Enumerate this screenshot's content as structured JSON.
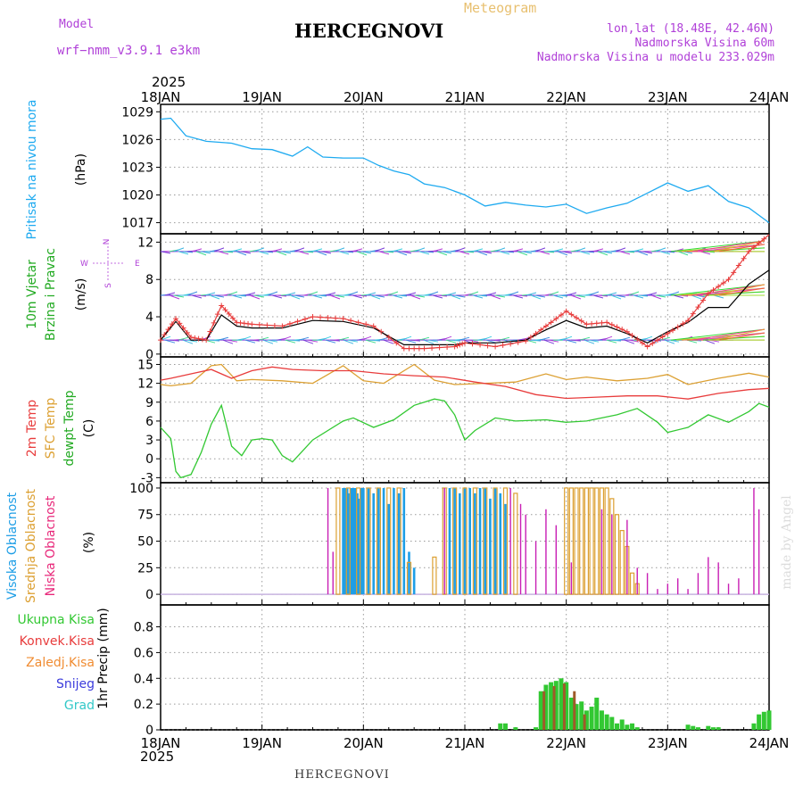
{
  "header": {
    "model_label": "Model",
    "model_name": "wrf−nmm_v3.9.1 e3km",
    "station": "HERCEGNOVI",
    "meteogram": "Meteogram",
    "coords": "lon,lat (18.48E, 42.46N)",
    "elevation": "Nadmorska Visina 60m",
    "model_elevation": "Nadmorska Visina u modelu 233.029m",
    "year_top": "2025",
    "year_bottom": "2025",
    "footer_station": "HERCEGNOVI",
    "watermark": "made by Angel"
  },
  "colors": {
    "pressure": "#1eaaf0",
    "wind_speed": "#000000",
    "wind_gust": "#e83c3c",
    "temp2m": "#e83c3c",
    "sfc_temp": "#dca032",
    "dewpoint": "#32c832",
    "cloud_high": "#1e9ee6",
    "cloud_mid": "#dca032",
    "cloud_low": "#c81eb4",
    "precip_total": "#32c832",
    "precip_conv": "#e83c3c",
    "precip_frozen": "#f08c32",
    "precip_snow": "#3c3cdc",
    "precip_hail": "#32c8c8"
  },
  "chart_data": [
    {
      "type": "line",
      "id": "pressure",
      "ylabel_left": "Pritisak na nivou mora",
      "unit": "(hPa)",
      "x_days": [
        "18JAN",
        "19JAN",
        "20JAN",
        "21JAN",
        "22JAN",
        "23JAN",
        "24JAN"
      ],
      "ylim": [
        1015.8,
        1029.8
      ],
      "yticks": [
        1017,
        1020,
        1023,
        1026,
        1029
      ],
      "series": [
        {
          "name": "Pressure",
          "x": [
            0,
            0.1,
            0.25,
            0.45,
            0.7,
            0.9,
            1.1,
            1.3,
            1.45,
            1.6,
            1.8,
            2.0,
            2.15,
            2.3,
            2.45,
            2.6,
            2.8,
            3.0,
            3.2,
            3.4,
            3.6,
            3.8,
            4.0,
            4.2,
            4.4,
            4.6,
            4.8,
            5.0,
            5.2,
            5.4,
            5.6,
            5.8,
            6.0
          ],
          "y": [
            1028.2,
            1028.3,
            1026.4,
            1025.8,
            1025.6,
            1025.0,
            1024.9,
            1024.2,
            1025.2,
            1024.1,
            1024.0,
            1024.0,
            1023.2,
            1022.6,
            1022.2,
            1021.2,
            1020.8,
            1020.0,
            1018.8,
            1019.2,
            1018.9,
            1018.7,
            1019.0,
            1018.0,
            1018.6,
            1019.1,
            1020.2,
            1021.3,
            1020.4,
            1021.0,
            1019.3,
            1018.6,
            1017.0
          ]
        }
      ]
    },
    {
      "type": "line",
      "id": "wind",
      "ylabel_left": "10m Vjetar",
      "ylabel_left2": "Brzina i Pravac",
      "unit": "(m/s)",
      "compass": {
        "n": "N",
        "w": "W",
        "e": "E",
        "s": "S"
      },
      "ylim": [
        -0.3,
        12.9
      ],
      "yticks": [
        0,
        4,
        8,
        12
      ],
      "barb_rows": [
        1.5,
        6.3,
        11.0
      ],
      "series": [
        {
          "name": "Wind speed",
          "x": [
            0,
            0.15,
            0.3,
            0.45,
            0.6,
            0.75,
            0.9,
            1.2,
            1.5,
            1.8,
            2.1,
            2.4,
            2.6,
            2.9,
            3.0,
            3.3,
            3.6,
            3.8,
            4.0,
            4.2,
            4.4,
            4.6,
            4.8,
            5.0,
            5.2,
            5.4,
            5.6,
            5.8,
            6.0
          ],
          "y": [
            1.5,
            3.5,
            1.5,
            1.5,
            4.2,
            3.0,
            2.8,
            2.8,
            3.6,
            3.5,
            2.8,
            1.0,
            1.0,
            1.0,
            1.2,
            1.2,
            1.5,
            2.6,
            3.6,
            2.8,
            3.0,
            2.2,
            1.2,
            2.4,
            3.4,
            5.0,
            5.0,
            7.5,
            9.0
          ]
        },
        {
          "name": "Wind gust",
          "x": [
            0,
            0.15,
            0.3,
            0.45,
            0.6,
            0.75,
            0.9,
            1.2,
            1.5,
            1.8,
            2.1,
            2.4,
            2.6,
            2.9,
            3.0,
            3.3,
            3.6,
            3.8,
            4.0,
            4.2,
            4.4,
            4.6,
            4.8,
            5.0,
            5.2,
            5.4,
            5.6,
            5.8,
            6.0
          ],
          "y": [
            1.5,
            3.8,
            1.8,
            1.5,
            5.2,
            3.4,
            3.2,
            3.0,
            4.0,
            3.8,
            3.0,
            0.6,
            0.6,
            0.8,
            1.2,
            0.8,
            1.4,
            3.0,
            4.6,
            3.2,
            3.4,
            2.4,
            0.8,
            2.2,
            3.6,
            6.5,
            8.0,
            11.0,
            12.8
          ]
        }
      ]
    },
    {
      "type": "line",
      "id": "temperature",
      "ylabel_left": "2m Temp",
      "ylabel_left2": "SFC Temp",
      "ylabel_left3": "dewpt Temp",
      "unit": "(C)",
      "ylim": [
        -3.8,
        16.2
      ],
      "yticks": [
        -3,
        0,
        3,
        6,
        9,
        12,
        15
      ],
      "series": [
        {
          "name": "2m Temp",
          "x": [
            0,
            0.1,
            0.3,
            0.5,
            0.7,
            0.9,
            1.1,
            1.3,
            1.6,
            1.9,
            2.2,
            2.5,
            2.8,
            3.1,
            3.4,
            3.7,
            4.0,
            4.3,
            4.6,
            4.9,
            5.2,
            5.5,
            5.8,
            6.0
          ],
          "y": [
            12.5,
            12.8,
            13.5,
            14.2,
            12.8,
            14.0,
            14.6,
            14.2,
            14.0,
            14.0,
            13.5,
            13.2,
            13.0,
            12.2,
            11.5,
            10.2,
            9.6,
            9.8,
            10.0,
            10.0,
            9.5,
            10.4,
            11.0,
            11.2
          ]
        },
        {
          "name": "SFC Temp",
          "x": [
            0,
            0.1,
            0.3,
            0.5,
            0.6,
            0.75,
            0.9,
            1.2,
            1.5,
            1.8,
            2.0,
            2.2,
            2.5,
            2.7,
            2.9,
            3.2,
            3.5,
            3.8,
            4.0,
            4.2,
            4.5,
            4.8,
            5.0,
            5.2,
            5.5,
            5.8,
            6.0
          ],
          "y": [
            11.8,
            11.6,
            12.0,
            14.8,
            15.0,
            12.4,
            12.6,
            12.4,
            12.0,
            14.8,
            12.4,
            12.0,
            15.0,
            12.5,
            11.8,
            12.0,
            12.2,
            13.5,
            12.6,
            13.0,
            12.4,
            12.8,
            13.4,
            11.8,
            12.8,
            13.6,
            13.0
          ]
        },
        {
          "name": "dewpt Temp",
          "x": [
            0,
            0.1,
            0.15,
            0.2,
            0.3,
            0.4,
            0.5,
            0.6,
            0.7,
            0.8,
            0.9,
            1.0,
            1.1,
            1.2,
            1.3,
            1.5,
            1.8,
            1.9,
            2.1,
            2.3,
            2.5,
            2.7,
            2.8,
            2.9,
            3.0,
            3.1,
            3.3,
            3.5,
            3.8,
            4.0,
            4.2,
            4.5,
            4.7,
            4.9,
            5.0,
            5.2,
            5.4,
            5.6,
            5.8,
            5.9,
            6.0
          ],
          "y": [
            5.0,
            3.2,
            -2.0,
            -3.0,
            -2.5,
            1.0,
            5.5,
            8.5,
            2.0,
            0.5,
            3.0,
            3.2,
            3.0,
            0.5,
            -0.5,
            3.0,
            6.0,
            6.5,
            5.0,
            6.2,
            8.5,
            9.5,
            9.2,
            7.0,
            3.0,
            4.5,
            6.5,
            6.0,
            6.2,
            5.8,
            6.0,
            7.0,
            8.0,
            5.8,
            4.2,
            5.0,
            7.0,
            5.8,
            7.5,
            8.8,
            8.2
          ]
        }
      ]
    },
    {
      "type": "bar",
      "id": "clouds",
      "ylabel_left": "Visoka Oblacnost",
      "ylabel_left2": "Srednja Oblacnost",
      "ylabel_left3": "Niska Oblacnost",
      "unit": "(%)",
      "ylim": [
        -10,
        105
      ],
      "yticks": [
        0,
        25,
        50,
        75,
        100
      ],
      "series": [
        {
          "name": "Visoka Oblacnost",
          "x": [
            1.8,
            1.82,
            1.84,
            1.86,
            1.88,
            1.9,
            1.92,
            1.94,
            1.96,
            1.98,
            2.0,
            2.05,
            2.1,
            2.15,
            2.2,
            2.25,
            2.3,
            2.35,
            2.4,
            2.45,
            2.5,
            2.85,
            2.9,
            2.95,
            3.0,
            3.05,
            3.1,
            3.15,
            3.2,
            3.25,
            3.3,
            3.35,
            3.4
          ],
          "y": [
            100,
            100,
            100,
            95,
            100,
            100,
            100,
            95,
            90,
            100,
            100,
            100,
            95,
            100,
            100,
            85,
            100,
            95,
            100,
            40,
            25,
            100,
            100,
            95,
            100,
            100,
            95,
            100,
            100,
            90,
            100,
            95,
            85
          ]
        },
        {
          "name": "Srednja Oblacnost",
          "x": [
            1.75,
            1.85,
            1.95,
            2.05,
            2.15,
            2.25,
            2.35,
            2.45,
            2.7,
            2.8,
            2.9,
            3.0,
            3.1,
            3.2,
            3.3,
            3.4,
            3.5,
            4.0,
            4.05,
            4.1,
            4.15,
            4.2,
            4.25,
            4.3,
            4.35,
            4.4,
            4.45,
            4.5,
            4.55,
            4.6,
            4.65,
            4.7
          ],
          "y": [
            100,
            100,
            100,
            100,
            100,
            100,
            100,
            30,
            35,
            100,
            100,
            100,
            100,
            100,
            100,
            100,
            95,
            100,
            100,
            100,
            100,
            100,
            100,
            100,
            100,
            100,
            90,
            75,
            60,
            45,
            20,
            10
          ]
        },
        {
          "name": "Niska Oblacnost",
          "x": [
            1.65,
            1.7,
            2.8,
            3.45,
            3.55,
            3.6,
            3.7,
            3.8,
            3.9,
            4.05,
            4.35,
            4.45,
            4.6,
            4.7,
            4.8,
            4.9,
            5.0,
            5.1,
            5.2,
            5.3,
            5.4,
            5.5,
            5.6,
            5.7,
            5.85,
            5.9
          ],
          "y": [
            100,
            40,
            100,
            100,
            85,
            75,
            50,
            80,
            65,
            30,
            80,
            75,
            70,
            25,
            20,
            5,
            10,
            15,
            5,
            20,
            35,
            30,
            10,
            15,
            100,
            80
          ]
        }
      ]
    },
    {
      "type": "bar",
      "id": "precipitation",
      "ylabel_left": "1hr Precip (mm)",
      "legend": [
        "Ukupna Kisa",
        "Konvek.Kisa",
        "Zaledj.Kisa",
        "Snijeg",
        "Grad"
      ],
      "ylim": [
        0,
        0.97
      ],
      "yticks": [
        0,
        0.2,
        0.4,
        0.6,
        0.8
      ],
      "yticklabels": [
        "0",
        "0.2",
        "0.4",
        "0.6",
        "0.8"
      ],
      "series": [
        {
          "name": "Ukupna Kisa",
          "x": [
            3.35,
            3.4,
            3.5,
            3.7,
            3.75,
            3.8,
            3.85,
            3.9,
            3.95,
            4.0,
            4.05,
            4.1,
            4.15,
            4.2,
            4.25,
            4.3,
            4.35,
            4.4,
            4.45,
            4.5,
            4.55,
            4.6,
            4.65,
            4.7,
            5.2,
            5.25,
            5.3,
            5.4,
            5.45,
            5.5,
            5.85,
            5.9,
            5.95,
            6.0
          ],
          "y": [
            0.05,
            0.05,
            0.02,
            0.02,
            0.3,
            0.35,
            0.37,
            0.38,
            0.4,
            0.37,
            0.25,
            0.2,
            0.22,
            0.15,
            0.18,
            0.25,
            0.15,
            0.12,
            0.1,
            0.05,
            0.08,
            0.04,
            0.05,
            0.02,
            0.04,
            0.03,
            0.02,
            0.03,
            0.02,
            0.02,
            0.05,
            0.12,
            0.14,
            0.15
          ]
        },
        {
          "name": "Konvek.Kisa",
          "x": [
            3.78,
            3.88,
            3.98,
            4.08,
            4.18
          ],
          "y": [
            0.3,
            0.34,
            0.36,
            0.3,
            0.12
          ]
        }
      ]
    }
  ]
}
